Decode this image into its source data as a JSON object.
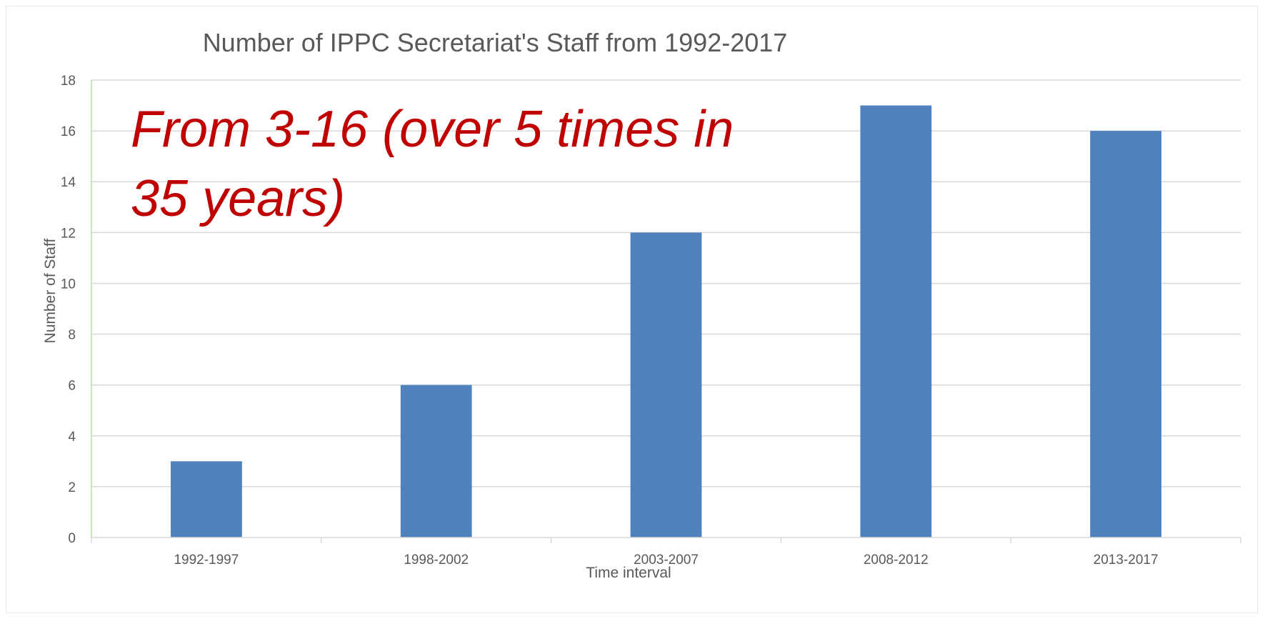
{
  "chart_data": {
    "type": "bar",
    "title": "Number of IPPC Secretariat's Staff from 1992-2017",
    "xlabel": "Time interval",
    "ylabel": "Number of Staff",
    "categories": [
      "1992-1997",
      "1998-2002",
      "2003-2007",
      "2008-2012",
      "2013-2017"
    ],
    "series": [
      {
        "values": [
          3,
          6,
          12,
          17,
          16
        ],
        "color": "#4f81bd"
      }
    ],
    "ylim": [
      0,
      18
    ],
    "yticks": [
      0,
      2,
      4,
      6,
      8,
      10,
      12,
      14,
      16,
      18
    ],
    "grid": true,
    "legend": "none",
    "annotation": {
      "lines": [
        "From 3-16 (over 5 times in",
        "35 years)"
      ],
      "color": "#c00000"
    },
    "colors": {
      "gridline": "#d9d9d9",
      "y_axis_line": "#b7dd9a",
      "x_axis_line": "#d9d9d9",
      "text": "#595959"
    }
  }
}
